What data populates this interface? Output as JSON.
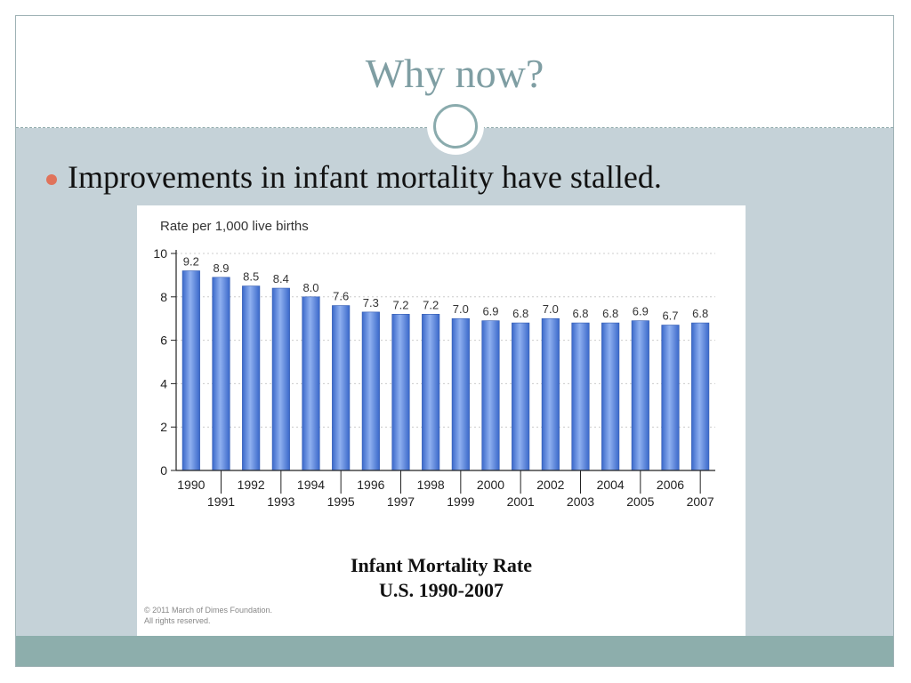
{
  "slide": {
    "title": "Why now?",
    "bullet": "Improvements in infant mortality have stalled.",
    "caption_line1": "Infant Mortality Rate",
    "caption_line2": "U.S. 1990-2007",
    "copyright_line1": "© 2011 March of Dimes Foundation.",
    "copyright_line2": "All rights reserved."
  },
  "colors": {
    "title": "#7f9ea3",
    "bullet_dot": "#e0735b",
    "slide_bg": "#c5d2d8",
    "bottom_bar": "#8daeac",
    "bar_dark": "#3a68c9",
    "bar_light": "#8fb0f0"
  },
  "chart_data": {
    "type": "bar",
    "title": "Rate per 1,000 live births",
    "categories": [
      "1990",
      "1991",
      "1992",
      "1993",
      "1994",
      "1995",
      "1996",
      "1997",
      "1998",
      "1999",
      "2000",
      "2001",
      "2002",
      "2003",
      "2004",
      "2005",
      "2006",
      "2007"
    ],
    "values": [
      9.2,
      8.9,
      8.5,
      8.4,
      8.0,
      7.6,
      7.3,
      7.2,
      7.2,
      7.0,
      6.9,
      6.8,
      7.0,
      6.8,
      6.8,
      6.9,
      6.7,
      6.8
    ],
    "labels": [
      "9.2",
      "8.9",
      "8.5",
      "8.4",
      "8.0",
      "7.6",
      "7.3",
      "7.2",
      "7.2",
      "7.0",
      "6.9",
      "6.8",
      "7.0",
      "6.8",
      "6.8",
      "6.9",
      "6.7",
      "6.8"
    ],
    "yticks": [
      "0",
      "2",
      "4",
      "6",
      "8",
      "10"
    ],
    "ylim": [
      0,
      10
    ],
    "grid": true,
    "xlabel": "",
    "ylabel": ""
  }
}
